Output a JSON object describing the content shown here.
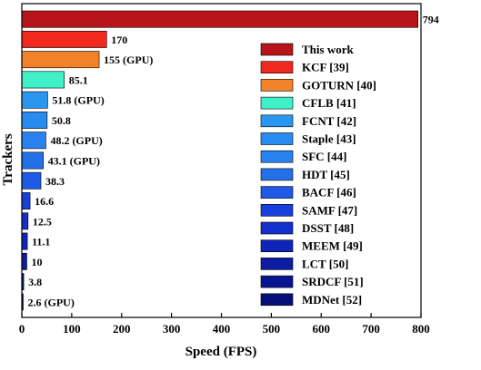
{
  "chart_data": {
    "type": "bar",
    "orientation": "horizontal",
    "xlabel": "Speed (FPS)",
    "ylabel": "Trackers",
    "xlim": [
      0,
      800
    ],
    "xticks": [
      "0",
      "100",
      "200",
      "300",
      "400",
      "500",
      "600",
      "700",
      "800"
    ],
    "grid": false,
    "legend_position": "right",
    "bars": [
      {
        "name": "This work",
        "value": 794,
        "label": "794",
        "color": "#b8151a"
      },
      {
        "name": "KCF [39]",
        "value": 170,
        "label": "170",
        "color": "#f0281e"
      },
      {
        "name": "GOTURN [40]",
        "value": 155,
        "label": "155 (GPU)",
        "color": "#f2822a"
      },
      {
        "name": "CFLB [41]",
        "value": 85.1,
        "label": "85.1",
        "color": "#40f0c8"
      },
      {
        "name": "FCNT [42]",
        "value": 51.8,
        "label": "51.8 (GPU)",
        "color": "#2a96f0"
      },
      {
        "name": "Staple [43]",
        "value": 50.8,
        "label": "50.8",
        "color": "#2a8cf0"
      },
      {
        "name": "SFC [44]",
        "value": 48.2,
        "label": "48.2 (GPU)",
        "color": "#2882f0"
      },
      {
        "name": "HDT [45]",
        "value": 43.1,
        "label": "43.1 (GPU)",
        "color": "#2470e8"
      },
      {
        "name": "BACF [46]",
        "value": 38.3,
        "label": "38.3",
        "color": "#1e5ae6"
      },
      {
        "name": "SAMF [47]",
        "value": 16.6,
        "label": "16.6",
        "color": "#1840dc"
      },
      {
        "name": "DSST [48]",
        "value": 12.5,
        "label": "12.5",
        "color": "#1430cc"
      },
      {
        "name": "MEEM [49]",
        "value": 11.1,
        "label": "11.1",
        "color": "#1024b8"
      },
      {
        "name": "LCT [50]",
        "value": 10,
        "label": "10",
        "color": "#0c1ca4"
      },
      {
        "name": "SRDCF [51]",
        "value": 3.8,
        "label": "3.8",
        "color": "#081590"
      },
      {
        "name": "MDNet [52]",
        "value": 2.6,
        "label": "2.6 (GPU)",
        "color": "#061078"
      }
    ]
  }
}
